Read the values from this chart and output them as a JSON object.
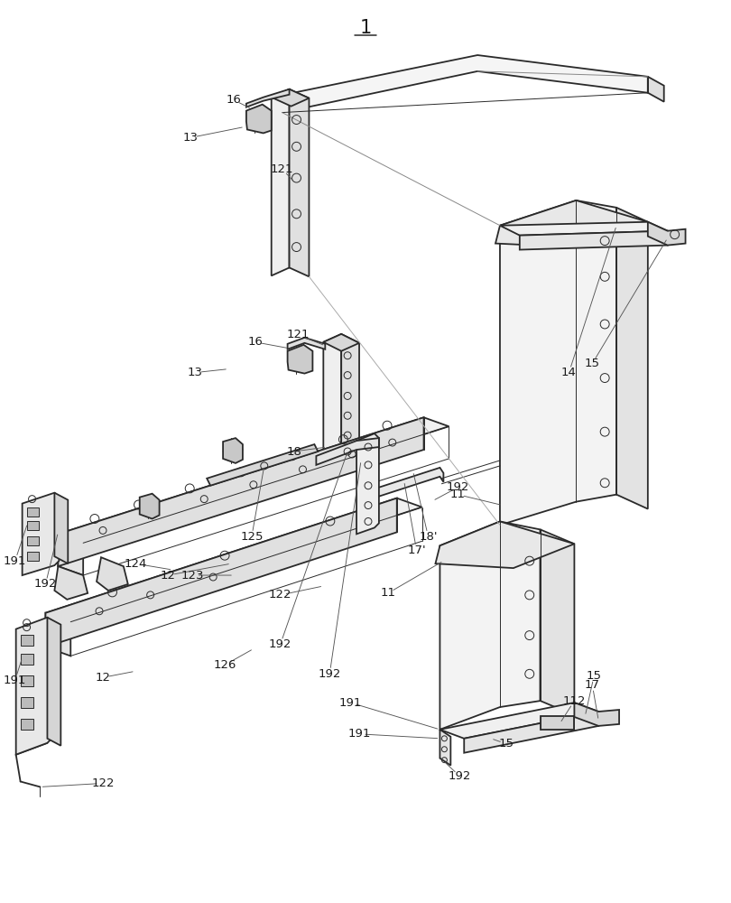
{
  "bg_color": "#ffffff",
  "line_color": "#2a2a2a",
  "label_color": "#1a1a1a",
  "figsize": [
    8.1,
    10.0
  ],
  "dpi": 100,
  "lw_main": 1.3,
  "lw_thin": 0.7,
  "label_fontsize": 9.5
}
